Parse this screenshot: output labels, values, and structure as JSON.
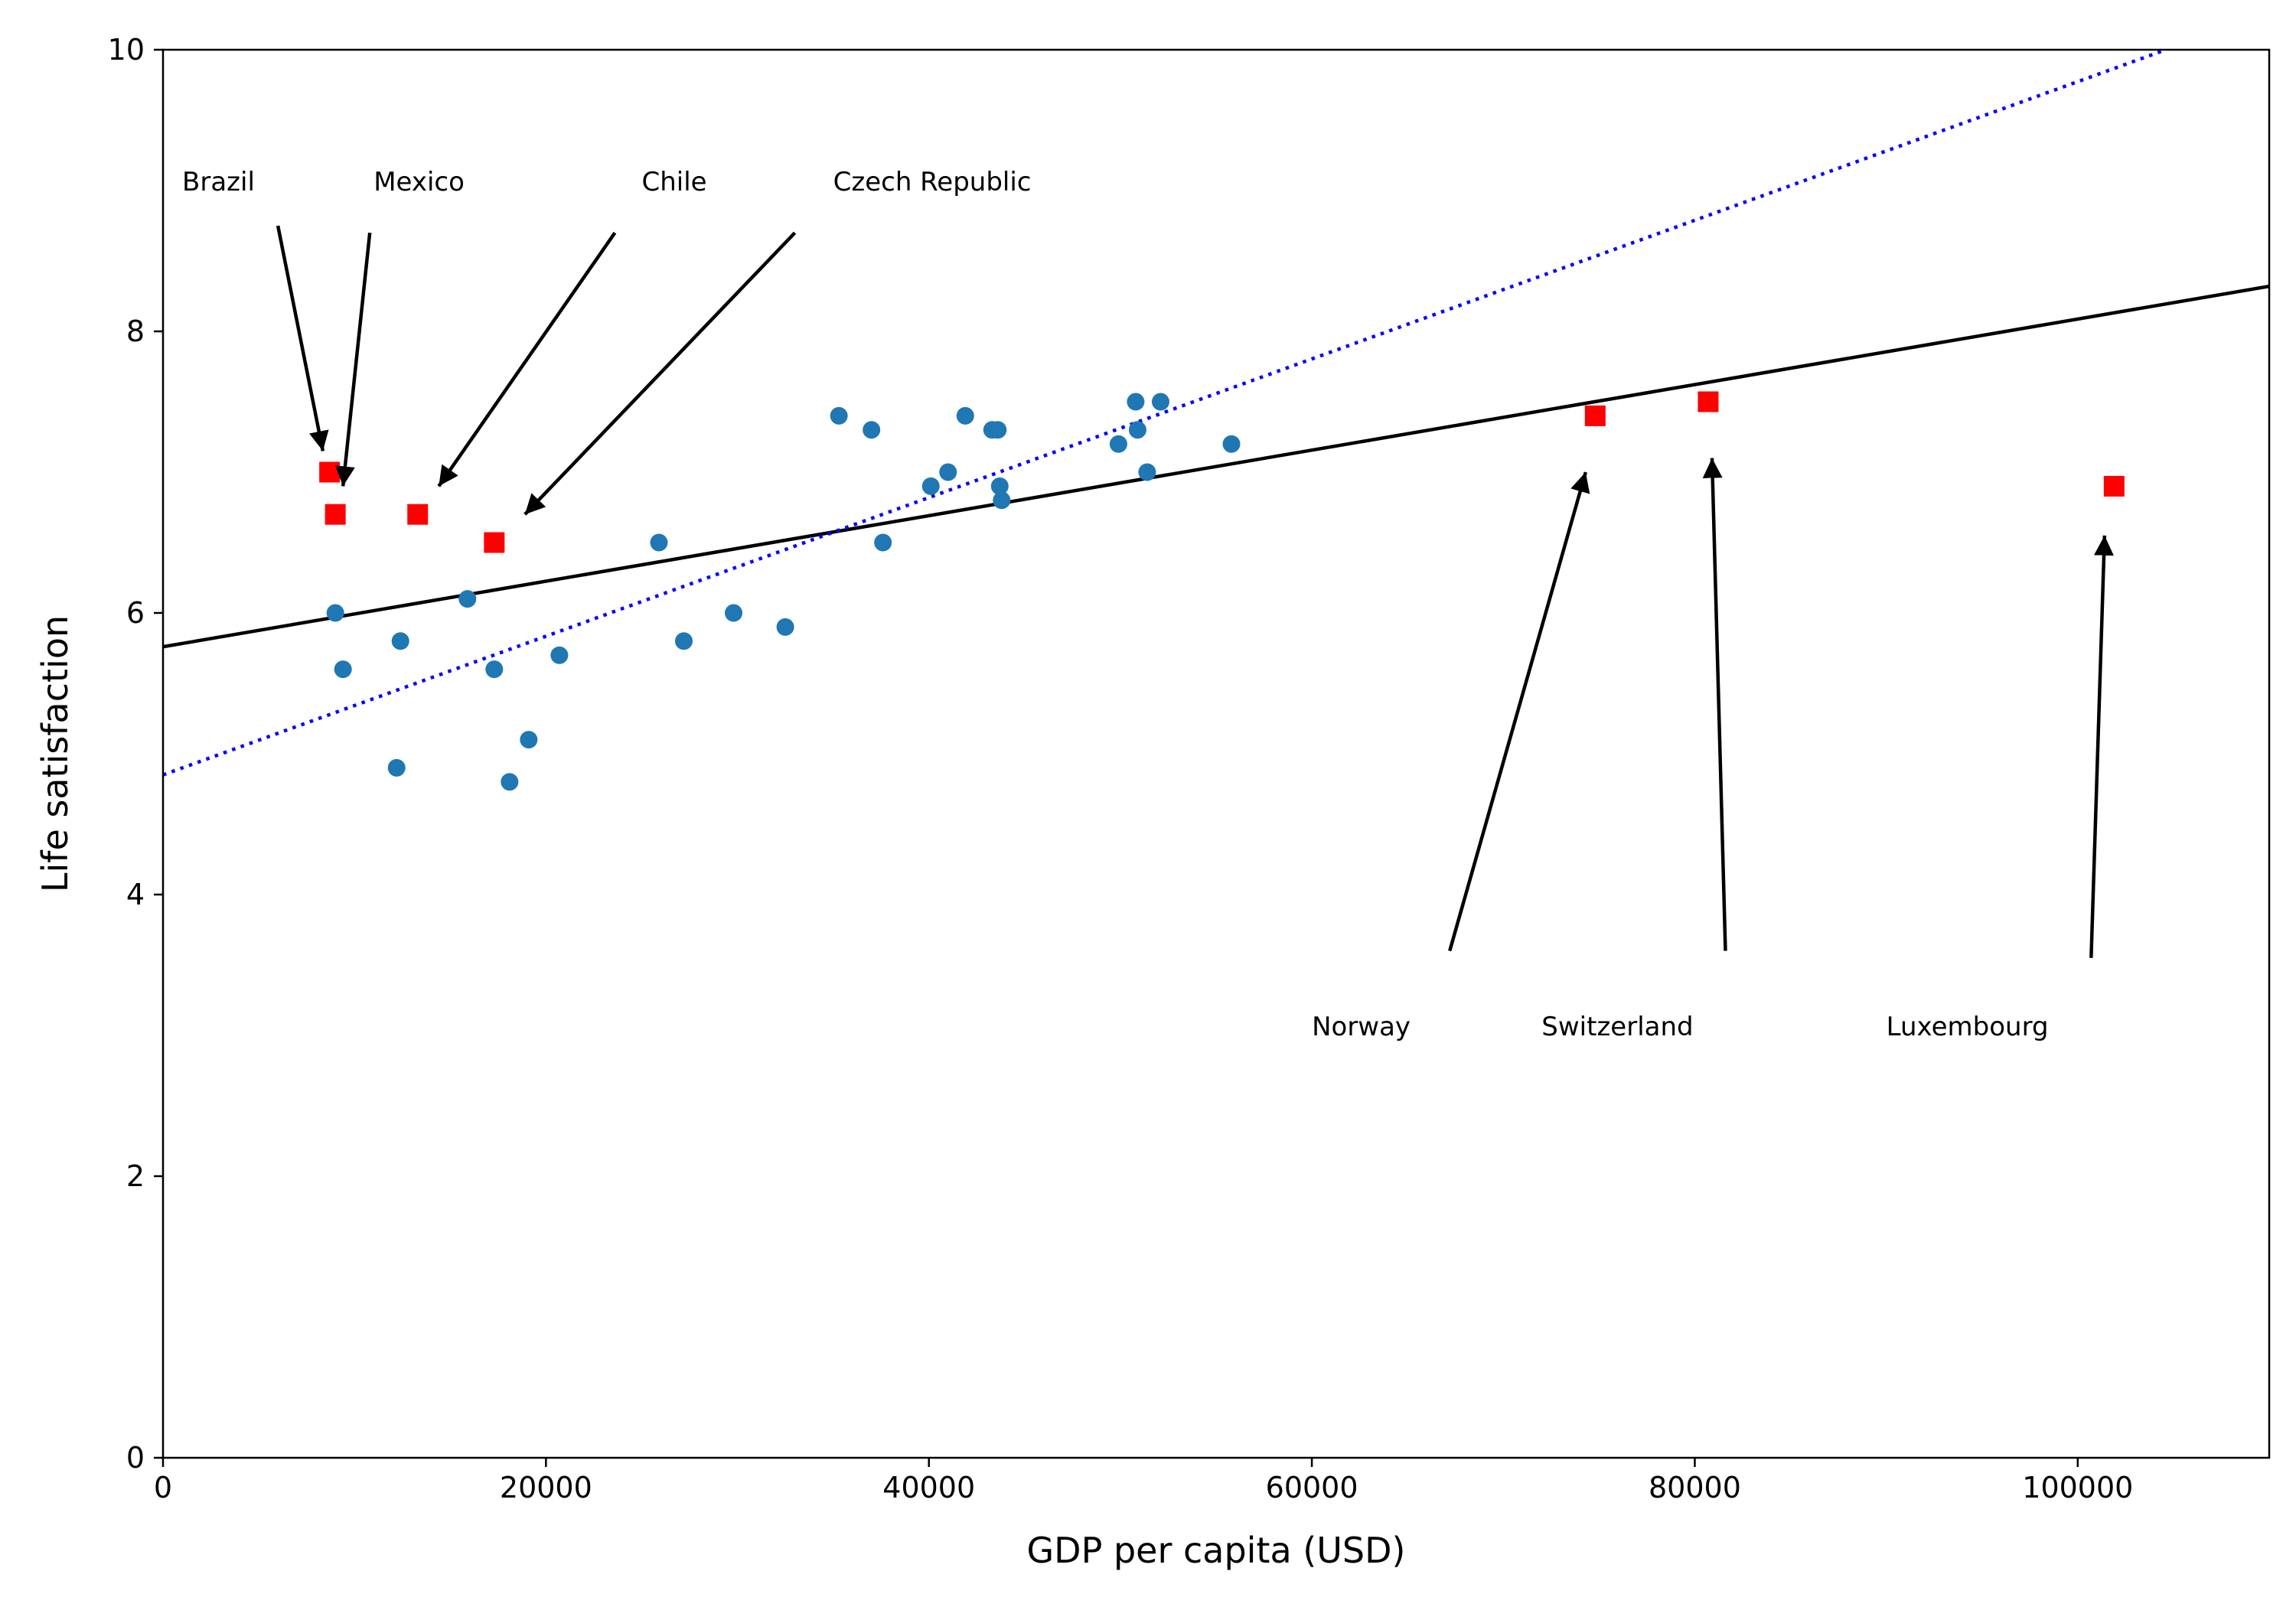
{
  "chart_data": {
    "type": "scatter",
    "title": "",
    "xlabel": "GDP per capita (USD)",
    "ylabel": "Life satisfaction",
    "xlim": [
      0,
      110000
    ],
    "ylim": [
      0,
      10
    ],
    "xticks": [
      0,
      20000,
      40000,
      60000,
      80000,
      100000
    ],
    "xtick_labels": [
      "0",
      "20000",
      "40000",
      "60000",
      "80000",
      "100000"
    ],
    "yticks": [
      0,
      2,
      4,
      6,
      8,
      10
    ],
    "ytick_labels": [
      "0",
      "2",
      "4",
      "6",
      "8",
      "10"
    ],
    "grid": false,
    "legend": "none",
    "colors": {
      "sample": "#1f77b4",
      "highlight": "#ff0000",
      "fit_all": "#000000",
      "fit_sample": "#0000ff"
    },
    "series": [
      {
        "kind": "scatter-circle",
        "points": [
          [
            9000,
            6.0
          ],
          [
            9400,
            5.6
          ],
          [
            12200,
            4.9
          ],
          [
            12400,
            5.8
          ],
          [
            15900,
            6.1
          ],
          [
            17300,
            5.6
          ],
          [
            18100,
            4.8
          ],
          [
            19100,
            5.1
          ],
          [
            20700,
            5.7
          ],
          [
            25900,
            6.5
          ],
          [
            27200,
            5.8
          ],
          [
            29800,
            6.0
          ],
          [
            32500,
            5.9
          ],
          [
            35300,
            7.4
          ],
          [
            37000,
            7.3
          ],
          [
            37600,
            6.5
          ],
          [
            40100,
            6.9
          ],
          [
            41000,
            7.0
          ],
          [
            41900,
            7.4
          ],
          [
            43300,
            7.3
          ],
          [
            43600,
            7.3
          ],
          [
            43700,
            6.9
          ],
          [
            43800,
            6.8
          ],
          [
            49900,
            7.2
          ],
          [
            50800,
            7.5
          ],
          [
            50900,
            7.3
          ],
          [
            51400,
            7.0
          ],
          [
            52100,
            7.5
          ],
          [
            55800,
            7.2
          ]
        ]
      },
      {
        "kind": "scatter-square",
        "points": [
          [
            8700,
            7.0
          ],
          [
            9000,
            6.7
          ],
          [
            13300,
            6.7
          ],
          [
            17300,
            6.5
          ],
          [
            74800,
            7.4
          ],
          [
            80700,
            7.5
          ],
          [
            101900,
            6.9
          ]
        ]
      },
      {
        "kind": "line-solid",
        "points": [
          [
            0,
            5.76
          ],
          [
            110000,
            8.32
          ]
        ]
      },
      {
        "kind": "line-dotted",
        "points": [
          [
            0,
            4.85
          ],
          [
            104600,
            10.0
          ]
        ]
      }
    ],
    "annotations": [
      {
        "text": "Brazil",
        "text_at": [
          1000,
          9.0
        ],
        "arrow_from": [
          6000,
          8.75
        ],
        "arrow_to": [
          8350,
          7.15
        ]
      },
      {
        "text": "Mexico",
        "text_at": [
          11000,
          9.0
        ],
        "arrow_from": [
          10800,
          8.7
        ],
        "arrow_to": [
          9400,
          6.9
        ]
      },
      {
        "text": "Chile",
        "text_at": [
          25000,
          9.0
        ],
        "arrow_from": [
          23600,
          8.7
        ],
        "arrow_to": [
          14400,
          6.9
        ]
      },
      {
        "text": "Czech Republic",
        "text_at": [
          35000,
          9.0
        ],
        "arrow_from": [
          33000,
          8.7
        ],
        "arrow_to": [
          18900,
          6.7
        ]
      },
      {
        "text": "Norway",
        "text_at": [
          60000,
          3.0
        ],
        "arrow_from": [
          67200,
          3.6
        ],
        "arrow_to": [
          74300,
          7.0
        ]
      },
      {
        "text": "Switzerland",
        "text_at": [
          72000,
          3.0
        ],
        "arrow_from": [
          81600,
          3.6
        ],
        "arrow_to": [
          80900,
          7.1
        ]
      },
      {
        "text": "Luxembourg",
        "text_at": [
          90000,
          3.0
        ],
        "arrow_from": [
          100700,
          3.55
        ],
        "arrow_to": [
          101400,
          6.55
        ]
      }
    ]
  }
}
